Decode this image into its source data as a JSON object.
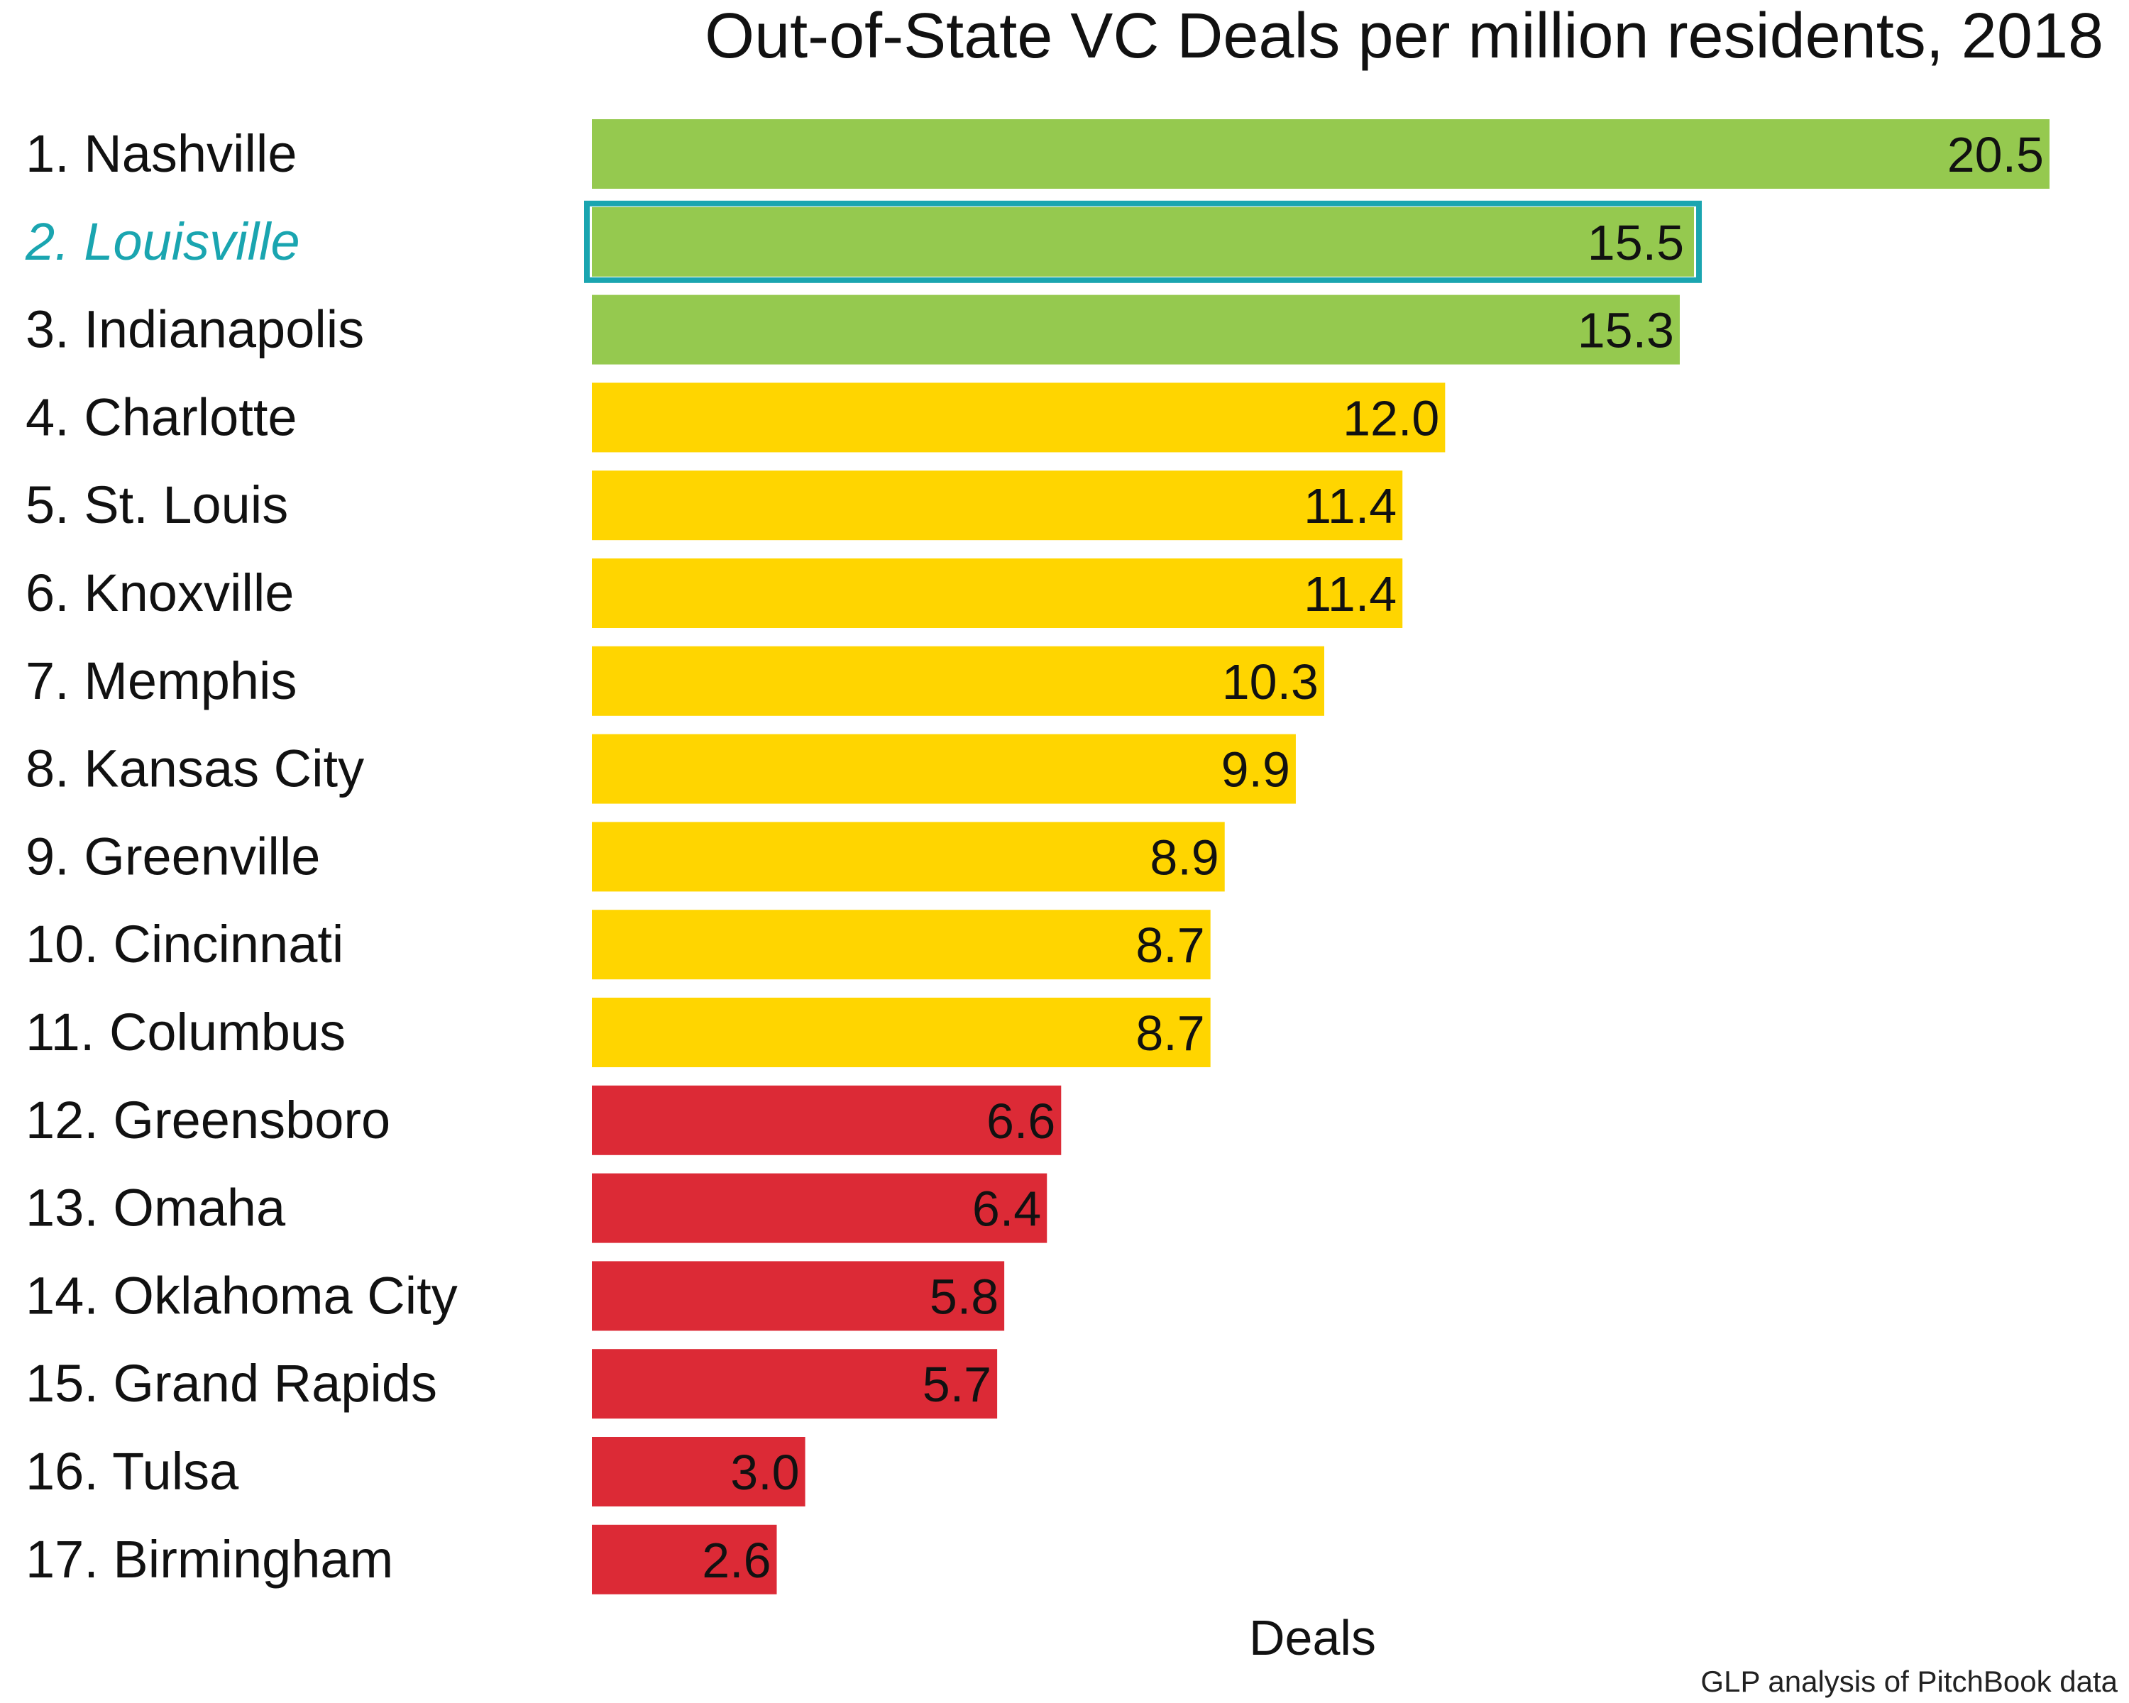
{
  "chart_data": {
    "type": "bar",
    "orientation": "horizontal",
    "title": "Out-of-State VC Deals per million residents, 2018",
    "xlabel": "Deals",
    "ylabel": "",
    "xlim": [
      0,
      20.5
    ],
    "grid": false,
    "legend": "none",
    "categories": [
      "1. Nashville",
      "2. Louisville",
      "3. Indianapolis",
      "4. Charlotte",
      "5. St. Louis",
      "6. Knoxville",
      "7. Memphis",
      "8. Kansas City",
      "9. Greenville",
      "10. Cincinnati",
      "11. Columbus",
      "12. Greensboro",
      "13. Omaha",
      "14. Oklahoma City",
      "15. Grand Rapids",
      "16. Tulsa",
      "17. Birmingham"
    ],
    "values": [
      20.5,
      15.5,
      15.3,
      12.0,
      11.4,
      11.4,
      10.3,
      9.9,
      8.9,
      8.7,
      8.7,
      6.6,
      6.4,
      5.8,
      5.7,
      3.0,
      2.6
    ],
    "value_labels": [
      "20.5",
      "15.5",
      "15.3",
      "12.0",
      "11.4",
      "11.4",
      "10.3",
      "9.9",
      "8.9",
      "8.7",
      "8.7",
      "6.6",
      "6.4",
      "5.8",
      "5.7",
      "3.0",
      "2.6"
    ],
    "bar_colors": [
      "#95c94f",
      "#95c94f",
      "#95c94f",
      "#ffd500",
      "#ffd500",
      "#ffd500",
      "#ffd500",
      "#ffd500",
      "#ffd500",
      "#ffd500",
      "#ffd500",
      "#dc2a36",
      "#dc2a36",
      "#dc2a36",
      "#dc2a36",
      "#dc2a36",
      "#dc2a36"
    ],
    "highlight": {
      "category": "2. Louisville",
      "color": "#1aa5b0",
      "style": "italic label and outlined bar"
    }
  },
  "source_note": "GLP analysis of PitchBook data"
}
